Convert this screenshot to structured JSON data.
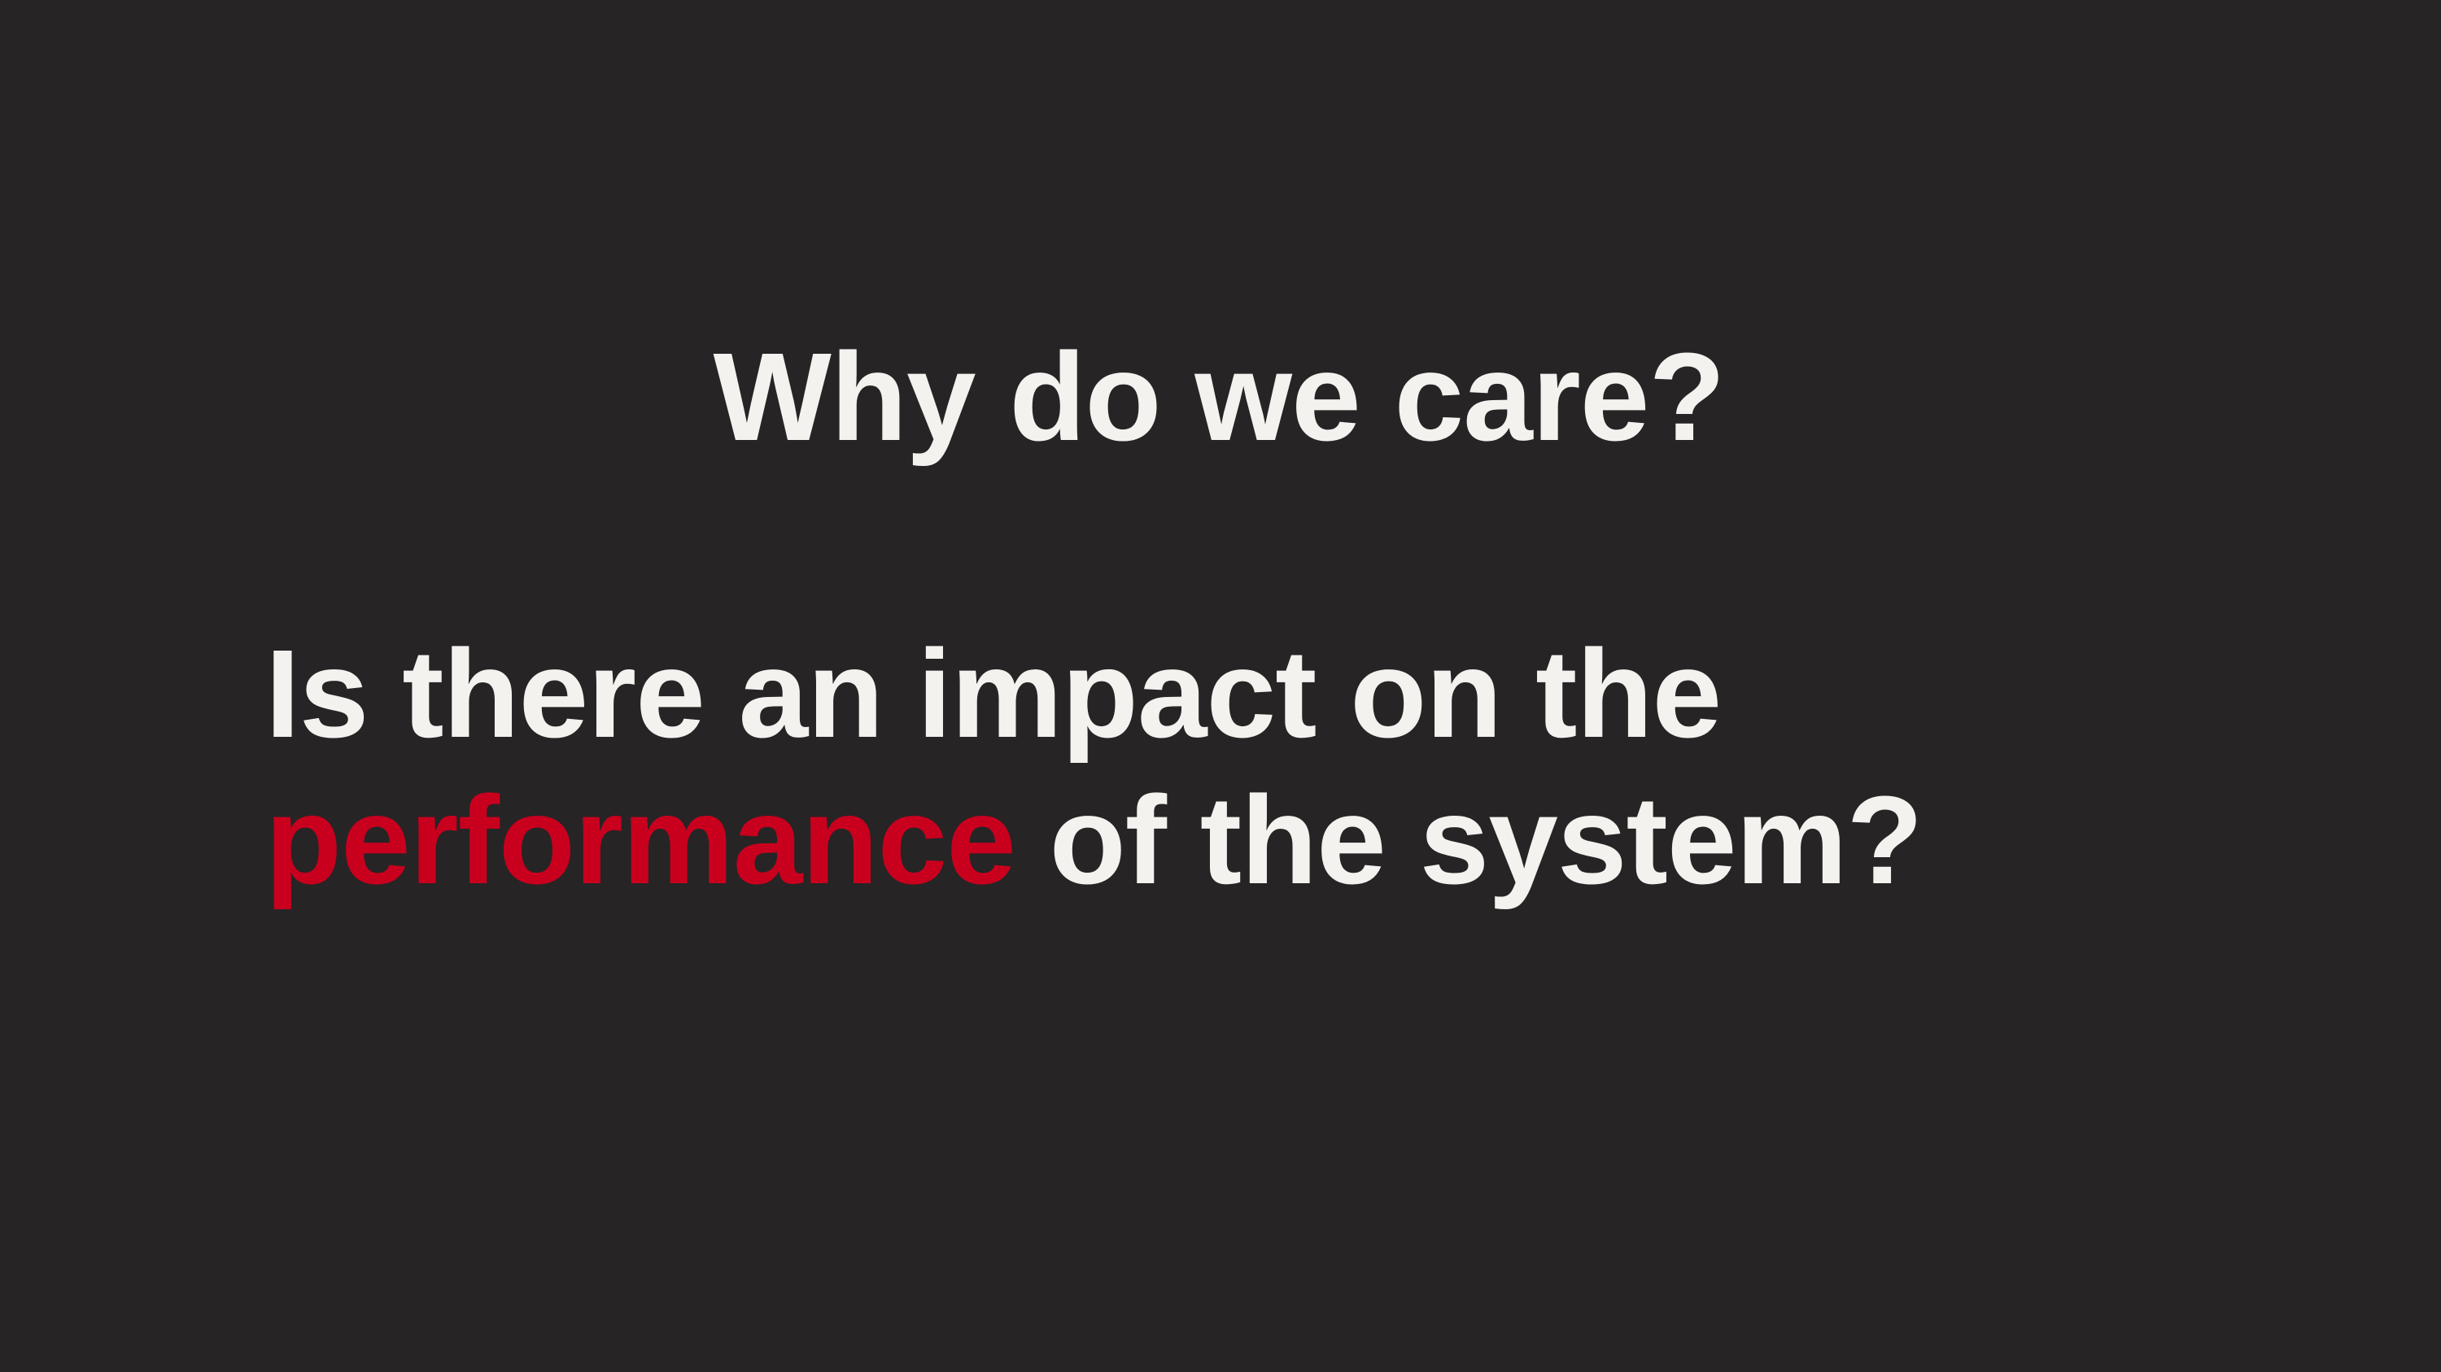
{
  "slide": {
    "title": "Why do we care?",
    "question": {
      "line1": "Is there an impact on the",
      "highlight": "performance",
      "line2_rest": " of the system?"
    }
  },
  "colors": {
    "background": "#262425",
    "text": "#f4f2ee",
    "accent": "#c8001e"
  }
}
